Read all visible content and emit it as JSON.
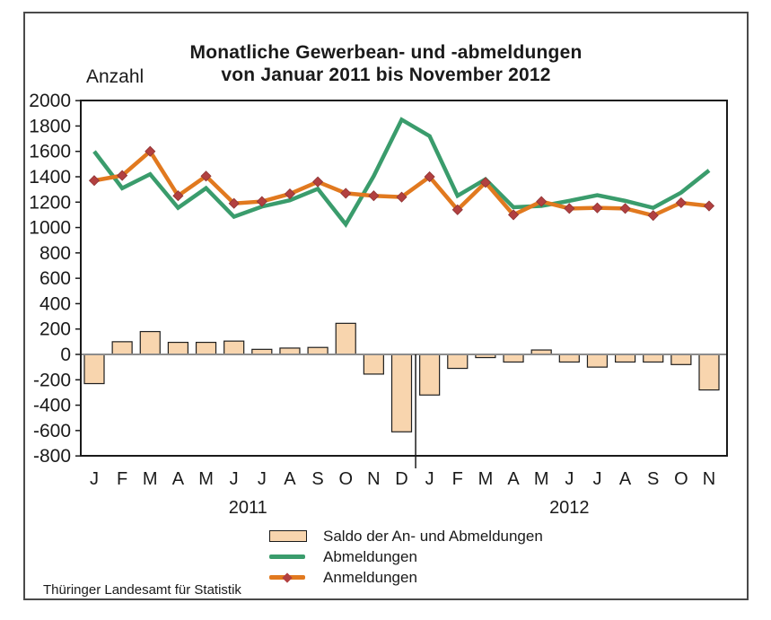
{
  "title": {
    "line1": "Monatliche Gewerbean- und -abmeldungen",
    "line2": "von Januar 2011 bis November 2012"
  },
  "axis_label": "Anzahl",
  "footer": "Thüringer Landesamt für Statistik",
  "legend": [
    {
      "label": "Saldo der An- und Abmeldungen",
      "swatch": "bar"
    },
    {
      "label": "Abmeldungen",
      "swatch": "line-green"
    },
    {
      "label": "Anmeldungen",
      "swatch": "line-orange-diamond"
    }
  ],
  "colors": {
    "bar_fill": "#F8D5AE",
    "bar_stroke": "#1f1f1f",
    "abmeldungen_line": "#3A9C6C",
    "anmeldungen_line": "#E1791F",
    "marker_fill": "#B24040",
    "zero_line": "#8c8c8c",
    "axis": "#1a1a1a",
    "text": "#1a1a1a"
  },
  "chart_data": {
    "type": "bar+line combo",
    "title": "Monatliche Gewerbean- und -abmeldungen von Januar 2011 bis November 2012",
    "ylabel": "Anzahl",
    "ylim": [
      -800,
      2000
    ],
    "ytick_step": 200,
    "grid": false,
    "legend_position": "bottom",
    "categories": [
      "J",
      "F",
      "M",
      "A",
      "M",
      "J",
      "J",
      "A",
      "S",
      "O",
      "N",
      "D",
      "J",
      "F",
      "M",
      "A",
      "M",
      "J",
      "J",
      "A",
      "S",
      "O",
      "N"
    ],
    "year_groups": [
      {
        "label": "2011",
        "start_index": 0,
        "end_index": 11
      },
      {
        "label": "2012",
        "start_index": 12,
        "end_index": 22
      }
    ],
    "series": [
      {
        "name": "Saldo der An- und Abmeldungen",
        "type": "bar",
        "values": [
          -230,
          100,
          180,
          95,
          95,
          105,
          40,
          50,
          55,
          245,
          -155,
          -610,
          -320,
          -110,
          -25,
          -60,
          35,
          -60,
          -100,
          -60,
          -60,
          -80,
          -280
        ]
      },
      {
        "name": "Abmeldungen",
        "type": "line",
        "values": [
          1600,
          1310,
          1420,
          1155,
          1310,
          1085,
          1165,
          1215,
          1305,
          1025,
          1405,
          1850,
          1720,
          1250,
          1380,
          1160,
          1170,
          1210,
          1255,
          1210,
          1155,
          1275,
          1450
        ]
      },
      {
        "name": "Anmeldungen",
        "type": "line",
        "marker": "diamond",
        "values": [
          1370,
          1410,
          1600,
          1250,
          1405,
          1190,
          1205,
          1265,
          1360,
          1270,
          1250,
          1240,
          1400,
          1140,
          1355,
          1100,
          1205,
          1150,
          1155,
          1150,
          1095,
          1195,
          1170
        ]
      }
    ]
  }
}
